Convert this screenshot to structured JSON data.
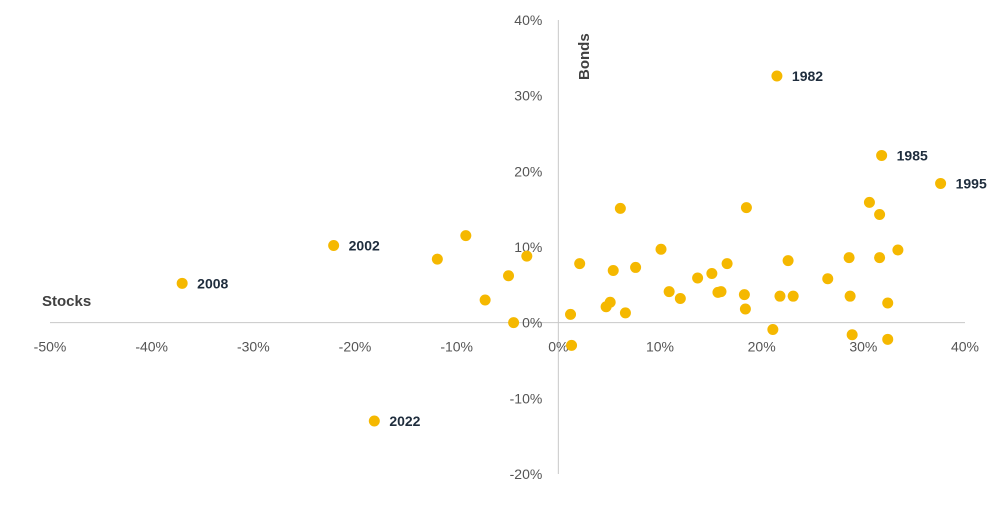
{
  "chart_data": {
    "type": "scatter",
    "xlabel": "Stocks",
    "ylabel": "Bonds",
    "xlim": [
      -0.5,
      0.4
    ],
    "ylim": [
      -0.2,
      0.4
    ],
    "grid": false,
    "x_ticks": [
      {
        "value": -0.5,
        "label": "-50%"
      },
      {
        "value": -0.4,
        "label": "-40%"
      },
      {
        "value": -0.3,
        "label": "-30%"
      },
      {
        "value": -0.2,
        "label": "-20%"
      },
      {
        "value": -0.1,
        "label": "-10%"
      },
      {
        "value": 0.0,
        "label": "0%"
      },
      {
        "value": 0.1,
        "label": "10%"
      },
      {
        "value": 0.2,
        "label": "20%"
      },
      {
        "value": 0.3,
        "label": "30%"
      },
      {
        "value": 0.4,
        "label": "40%"
      }
    ],
    "y_ticks": [
      {
        "value": 0.4,
        "label": "40%"
      },
      {
        "value": 0.3,
        "label": "30%"
      },
      {
        "value": 0.2,
        "label": "20%"
      },
      {
        "value": 0.1,
        "label": "10%"
      },
      {
        "value": 0.0,
        "label": "0%"
      },
      {
        "value": -0.1,
        "label": "-10%"
      },
      {
        "value": -0.2,
        "label": "-20%"
      }
    ],
    "colors": {
      "point": "#F5B800",
      "axis": "#c8c8c8"
    },
    "points": [
      {
        "x": 0.215,
        "y": 0.326,
        "label": "1982"
      },
      {
        "x": 0.318,
        "y": 0.221,
        "label": "1985"
      },
      {
        "x": 0.376,
        "y": 0.184,
        "label": "1995"
      },
      {
        "x": -0.221,
        "y": 0.102,
        "label": "2002"
      },
      {
        "x": -0.37,
        "y": 0.052,
        "label": "2008"
      },
      {
        "x": -0.181,
        "y": -0.13,
        "label": "2022"
      },
      {
        "x": -0.091,
        "y": 0.115
      },
      {
        "x": -0.119,
        "y": 0.084
      },
      {
        "x": -0.031,
        "y": 0.088
      },
      {
        "x": -0.049,
        "y": 0.062
      },
      {
        "x": -0.072,
        "y": 0.03
      },
      {
        "x": -0.044,
        "y": 0.0
      },
      {
        "x": 0.013,
        "y": -0.03
      },
      {
        "x": 0.012,
        "y": 0.011
      },
      {
        "x": 0.021,
        "y": 0.078
      },
      {
        "x": 0.047,
        "y": 0.021
      },
      {
        "x": 0.051,
        "y": 0.027
      },
      {
        "x": 0.054,
        "y": 0.069
      },
      {
        "x": 0.061,
        "y": 0.151
      },
      {
        "x": 0.066,
        "y": 0.013
      },
      {
        "x": 0.076,
        "y": 0.073
      },
      {
        "x": 0.101,
        "y": 0.097
      },
      {
        "x": 0.109,
        "y": 0.041
      },
      {
        "x": 0.12,
        "y": 0.032
      },
      {
        "x": 0.137,
        "y": 0.059
      },
      {
        "x": 0.151,
        "y": 0.065
      },
      {
        "x": 0.157,
        "y": 0.04
      },
      {
        "x": 0.16,
        "y": 0.041
      },
      {
        "x": 0.166,
        "y": 0.078
      },
      {
        "x": 0.185,
        "y": 0.152
      },
      {
        "x": 0.183,
        "y": 0.037
      },
      {
        "x": 0.184,
        "y": 0.018
      },
      {
        "x": 0.211,
        "y": -0.009
      },
      {
        "x": 0.218,
        "y": 0.035
      },
      {
        "x": 0.226,
        "y": 0.082
      },
      {
        "x": 0.231,
        "y": 0.035
      },
      {
        "x": 0.265,
        "y": 0.058
      },
      {
        "x": 0.286,
        "y": 0.086
      },
      {
        "x": 0.287,
        "y": 0.035
      },
      {
        "x": 0.289,
        "y": -0.016
      },
      {
        "x": 0.306,
        "y": 0.159
      },
      {
        "x": 0.316,
        "y": 0.143
      },
      {
        "x": 0.316,
        "y": 0.086
      },
      {
        "x": 0.324,
        "y": 0.026
      },
      {
        "x": 0.324,
        "y": -0.022
      },
      {
        "x": 0.334,
        "y": 0.096
      }
    ]
  }
}
